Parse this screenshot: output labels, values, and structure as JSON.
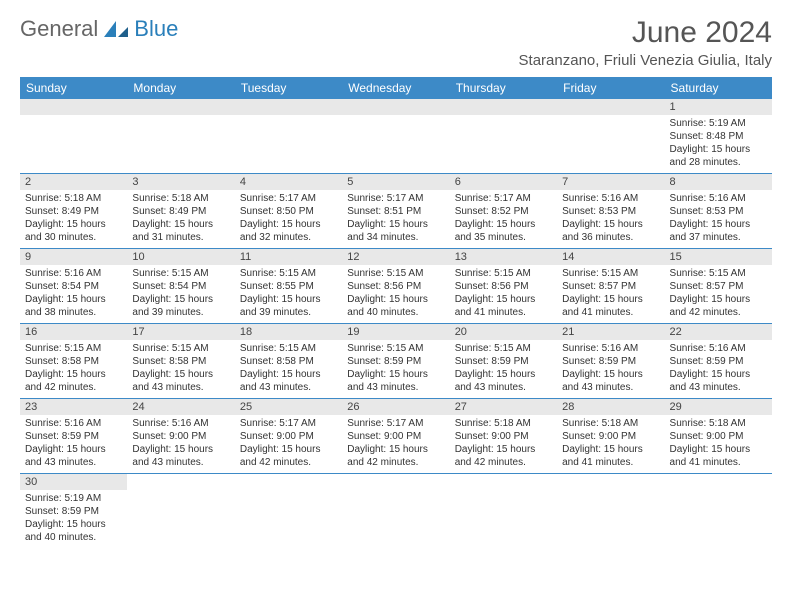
{
  "logo": {
    "text1": "General",
    "text2": "Blue"
  },
  "title": "June 2024",
  "location": "Staranzano, Friuli Venezia Giulia, Italy",
  "colors": {
    "header_bg": "#3d8ac7",
    "header_text": "#ffffff",
    "daynum_bg": "#e8e8e8",
    "border": "#3d8ac7",
    "logo_blue": "#2a7fba"
  },
  "weekdays": [
    "Sunday",
    "Monday",
    "Tuesday",
    "Wednesday",
    "Thursday",
    "Friday",
    "Saturday"
  ],
  "weeks": [
    [
      null,
      null,
      null,
      null,
      null,
      null,
      {
        "n": "1",
        "sr": "Sunrise: 5:19 AM",
        "ss": "Sunset: 8:48 PM",
        "dl": "Daylight: 15 hours and 28 minutes."
      }
    ],
    [
      {
        "n": "2",
        "sr": "Sunrise: 5:18 AM",
        "ss": "Sunset: 8:49 PM",
        "dl": "Daylight: 15 hours and 30 minutes."
      },
      {
        "n": "3",
        "sr": "Sunrise: 5:18 AM",
        "ss": "Sunset: 8:49 PM",
        "dl": "Daylight: 15 hours and 31 minutes."
      },
      {
        "n": "4",
        "sr": "Sunrise: 5:17 AM",
        "ss": "Sunset: 8:50 PM",
        "dl": "Daylight: 15 hours and 32 minutes."
      },
      {
        "n": "5",
        "sr": "Sunrise: 5:17 AM",
        "ss": "Sunset: 8:51 PM",
        "dl": "Daylight: 15 hours and 34 minutes."
      },
      {
        "n": "6",
        "sr": "Sunrise: 5:17 AM",
        "ss": "Sunset: 8:52 PM",
        "dl": "Daylight: 15 hours and 35 minutes."
      },
      {
        "n": "7",
        "sr": "Sunrise: 5:16 AM",
        "ss": "Sunset: 8:53 PM",
        "dl": "Daylight: 15 hours and 36 minutes."
      },
      {
        "n": "8",
        "sr": "Sunrise: 5:16 AM",
        "ss": "Sunset: 8:53 PM",
        "dl": "Daylight: 15 hours and 37 minutes."
      }
    ],
    [
      {
        "n": "9",
        "sr": "Sunrise: 5:16 AM",
        "ss": "Sunset: 8:54 PM",
        "dl": "Daylight: 15 hours and 38 minutes."
      },
      {
        "n": "10",
        "sr": "Sunrise: 5:15 AM",
        "ss": "Sunset: 8:54 PM",
        "dl": "Daylight: 15 hours and 39 minutes."
      },
      {
        "n": "11",
        "sr": "Sunrise: 5:15 AM",
        "ss": "Sunset: 8:55 PM",
        "dl": "Daylight: 15 hours and 39 minutes."
      },
      {
        "n": "12",
        "sr": "Sunrise: 5:15 AM",
        "ss": "Sunset: 8:56 PM",
        "dl": "Daylight: 15 hours and 40 minutes."
      },
      {
        "n": "13",
        "sr": "Sunrise: 5:15 AM",
        "ss": "Sunset: 8:56 PM",
        "dl": "Daylight: 15 hours and 41 minutes."
      },
      {
        "n": "14",
        "sr": "Sunrise: 5:15 AM",
        "ss": "Sunset: 8:57 PM",
        "dl": "Daylight: 15 hours and 41 minutes."
      },
      {
        "n": "15",
        "sr": "Sunrise: 5:15 AM",
        "ss": "Sunset: 8:57 PM",
        "dl": "Daylight: 15 hours and 42 minutes."
      }
    ],
    [
      {
        "n": "16",
        "sr": "Sunrise: 5:15 AM",
        "ss": "Sunset: 8:58 PM",
        "dl": "Daylight: 15 hours and 42 minutes."
      },
      {
        "n": "17",
        "sr": "Sunrise: 5:15 AM",
        "ss": "Sunset: 8:58 PM",
        "dl": "Daylight: 15 hours and 43 minutes."
      },
      {
        "n": "18",
        "sr": "Sunrise: 5:15 AM",
        "ss": "Sunset: 8:58 PM",
        "dl": "Daylight: 15 hours and 43 minutes."
      },
      {
        "n": "19",
        "sr": "Sunrise: 5:15 AM",
        "ss": "Sunset: 8:59 PM",
        "dl": "Daylight: 15 hours and 43 minutes."
      },
      {
        "n": "20",
        "sr": "Sunrise: 5:15 AM",
        "ss": "Sunset: 8:59 PM",
        "dl": "Daylight: 15 hours and 43 minutes."
      },
      {
        "n": "21",
        "sr": "Sunrise: 5:16 AM",
        "ss": "Sunset: 8:59 PM",
        "dl": "Daylight: 15 hours and 43 minutes."
      },
      {
        "n": "22",
        "sr": "Sunrise: 5:16 AM",
        "ss": "Sunset: 8:59 PM",
        "dl": "Daylight: 15 hours and 43 minutes."
      }
    ],
    [
      {
        "n": "23",
        "sr": "Sunrise: 5:16 AM",
        "ss": "Sunset: 8:59 PM",
        "dl": "Daylight: 15 hours and 43 minutes."
      },
      {
        "n": "24",
        "sr": "Sunrise: 5:16 AM",
        "ss": "Sunset: 9:00 PM",
        "dl": "Daylight: 15 hours and 43 minutes."
      },
      {
        "n": "25",
        "sr": "Sunrise: 5:17 AM",
        "ss": "Sunset: 9:00 PM",
        "dl": "Daylight: 15 hours and 42 minutes."
      },
      {
        "n": "26",
        "sr": "Sunrise: 5:17 AM",
        "ss": "Sunset: 9:00 PM",
        "dl": "Daylight: 15 hours and 42 minutes."
      },
      {
        "n": "27",
        "sr": "Sunrise: 5:18 AM",
        "ss": "Sunset: 9:00 PM",
        "dl": "Daylight: 15 hours and 42 minutes."
      },
      {
        "n": "28",
        "sr": "Sunrise: 5:18 AM",
        "ss": "Sunset: 9:00 PM",
        "dl": "Daylight: 15 hours and 41 minutes."
      },
      {
        "n": "29",
        "sr": "Sunrise: 5:18 AM",
        "ss": "Sunset: 9:00 PM",
        "dl": "Daylight: 15 hours and 41 minutes."
      }
    ],
    [
      {
        "n": "30",
        "sr": "Sunrise: 5:19 AM",
        "ss": "Sunset: 8:59 PM",
        "dl": "Daylight: 15 hours and 40 minutes."
      },
      null,
      null,
      null,
      null,
      null,
      null
    ]
  ]
}
